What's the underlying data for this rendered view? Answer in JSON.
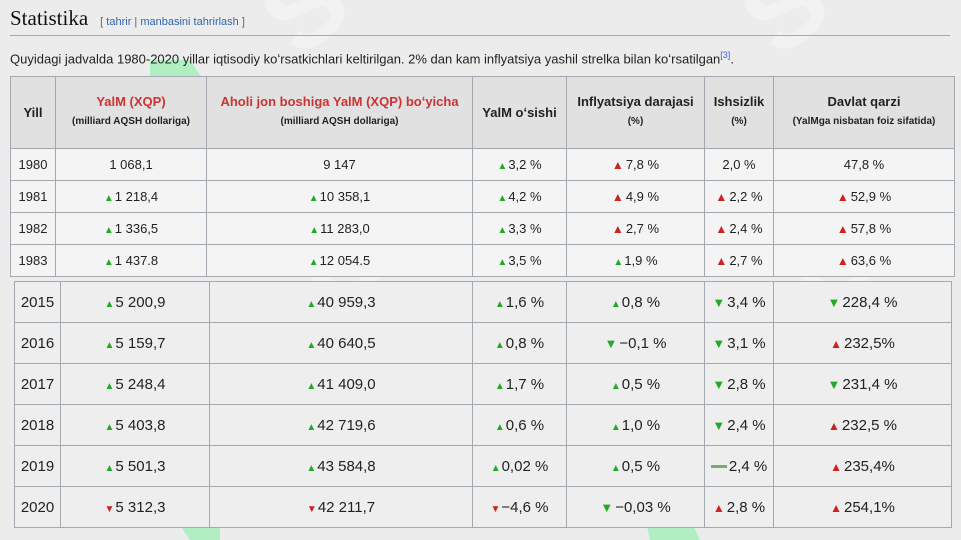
{
  "heading": {
    "title": "Statistika",
    "edit_open": "[ ",
    "edit_link1": "tahrir",
    "edit_sep": " | ",
    "edit_link2": "manbasini tahrirlash",
    "edit_close": " ]"
  },
  "intro": {
    "text": "Quyidagi jadvalda 1980-2020 yillar iqtisodiy koʻrsatkichlari keltirilgan. 2% dan kam inflyatsiya yashil strelka bilan koʻrsatilgan",
    "ref": "[3]",
    "end": "."
  },
  "table": {
    "headers": {
      "year": "Yill",
      "gdp_title": "YalM (XQP)",
      "gdp_sub": "(milliard AQSH dollariga)",
      "gdppc_title": "Aholi jon boshiga YalM (XQP) boʻyicha",
      "gdppc_sub": "(milliard AQSH dollariga)",
      "growth_title": "YalM oʻsishi",
      "infl_title": "Inflyatsiya darajasi",
      "infl_sub": "(%)",
      "unemp_title": "Ishsizlik",
      "unemp_sub": "(%)",
      "debt_title": "Davlat qarzi",
      "debt_sub": "(YalMga nisbatan foiz sifatida)"
    },
    "rows": [
      {
        "year": "1980",
        "gdp": "1 068,1",
        "gdppc": "9 147",
        "growth": "3,2 %",
        "infl": "7,8 %",
        "unemp": "2,0 %",
        "debt": "47,8 %"
      },
      {
        "year": "1981",
        "gdp": "1 218,4",
        "gdppc": "10 358,1",
        "growth": "4,2 %",
        "infl": "4,9 %",
        "unemp": "2,2 %",
        "debt": "52,9 %"
      },
      {
        "year": "1982",
        "gdp": "1 336,5",
        "gdppc": "11 283,0",
        "growth": "3,3 %",
        "infl": "2,7 %",
        "unemp": "2,4 %",
        "debt": "57,8 %"
      },
      {
        "year": "1983",
        "gdp": "1 437.8",
        "gdppc": "12 054.5",
        "growth": "3,5 %",
        "infl": "1,9 %",
        "unemp": "2,7 %",
        "debt": "63,6 %"
      },
      {
        "year": "2015",
        "gdp": "5 200,9",
        "gdppc": "40 959,3",
        "growth": "1,6 %",
        "infl": "0,8 %",
        "unemp": "3,4 %",
        "debt": "228,4 %"
      },
      {
        "year": "2016",
        "gdp": "5 159,7",
        "gdppc": "40 640,5",
        "growth": "0,8 %",
        "infl": "−0,1 %",
        "unemp": "3,1 %",
        "debt": "232,5%"
      },
      {
        "year": "2017",
        "gdp": "5 248,4",
        "gdppc": "41 409,0",
        "growth": "1,7 %",
        "infl": "0,5 %",
        "unemp": "2,8 %",
        "debt": "231,4 %"
      },
      {
        "year": "2018",
        "gdp": "5 403,8",
        "gdppc": "42 719,6",
        "growth": "0,6 %",
        "infl": "1,0 %",
        "unemp": "2,4 %",
        "debt": "232,5 %"
      },
      {
        "year": "2019",
        "gdp": "5 501,3",
        "gdppc": "43 584,8",
        "growth": "0,02 %",
        "infl": "0,5 %",
        "unemp": "2,4 %",
        "debt": "235,4%"
      },
      {
        "year": "2020",
        "gdp": "5 312,3",
        "gdppc": "42 211,7",
        "growth": "−4,6 %",
        "infl": "−0,03 %",
        "unemp": "2,8 %",
        "debt": "254,1%"
      }
    ]
  },
  "watermark": {
    "text": "SOF",
    "color": "#8ee8a8"
  }
}
